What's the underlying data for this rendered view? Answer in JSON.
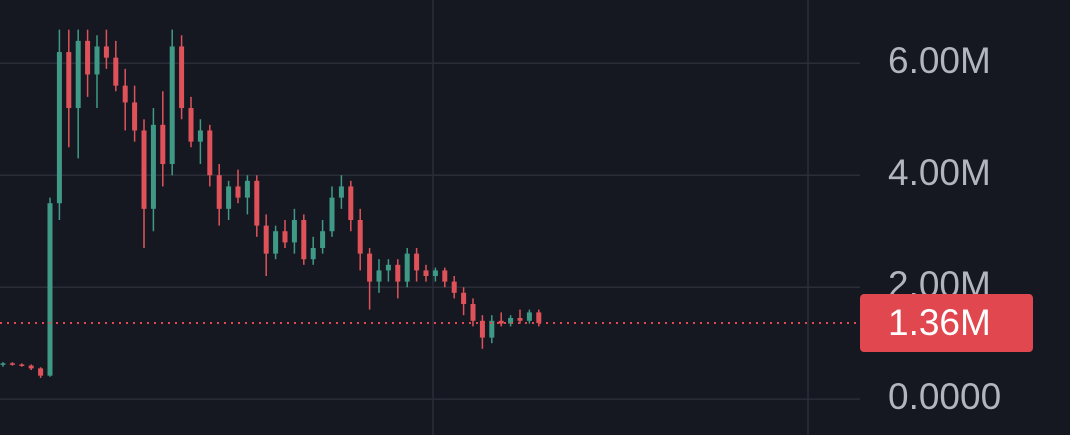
{
  "chart_data": {
    "type": "candlestick",
    "open": [
      0.62,
      0.64,
      0.62,
      0.6,
      0.55,
      0.42,
      3.5,
      6.2,
      5.2,
      6.4,
      5.8,
      6.3,
      6.1,
      5.6,
      5.3,
      4.8,
      3.4,
      4.9,
      4.2,
      6.3,
      5.2,
      4.6,
      4.8,
      4.0,
      3.4,
      3.8,
      3.6,
      3.9,
      3.1,
      2.6,
      3.0,
      2.8,
      3.2,
      2.5,
      2.7,
      3.0,
      3.6,
      3.8,
      3.2,
      2.6,
      2.1,
      2.3,
      2.4,
      2.1,
      2.6,
      2.3,
      2.2,
      2.3,
      2.1,
      1.9,
      1.7,
      1.4,
      1.1,
      1.4,
      1.35,
      1.45,
      1.4,
      1.55
    ],
    "high": [
      0.66,
      0.66,
      0.64,
      0.62,
      0.57,
      3.6,
      6.6,
      6.6,
      6.6,
      6.6,
      6.5,
      6.6,
      6.4,
      5.9,
      5.6,
      5.0,
      5.2,
      5.5,
      6.6,
      6.5,
      5.4,
      5.0,
      4.9,
      4.2,
      3.9,
      4.1,
      4.0,
      4.0,
      3.3,
      3.1,
      3.2,
      3.4,
      3.3,
      2.9,
      3.2,
      3.8,
      4.0,
      3.9,
      3.4,
      2.7,
      2.5,
      2.5,
      2.5,
      2.7,
      2.7,
      2.4,
      2.35,
      2.35,
      2.2,
      2.0,
      1.8,
      1.5,
      1.5,
      1.55,
      1.5,
      1.6,
      1.6,
      1.6
    ],
    "low": [
      0.58,
      0.6,
      0.58,
      0.52,
      0.38,
      0.4,
      3.2,
      4.5,
      4.3,
      5.4,
      5.2,
      5.9,
      5.5,
      4.8,
      4.6,
      2.7,
      3.0,
      3.8,
      4.0,
      5.0,
      4.5,
      4.2,
      3.8,
      3.1,
      3.2,
      3.5,
      3.3,
      2.9,
      2.2,
      2.5,
      2.7,
      2.6,
      2.4,
      2.4,
      2.6,
      2.9,
      3.4,
      3.0,
      2.3,
      1.6,
      1.9,
      2.1,
      1.8,
      2.0,
      2.1,
      2.1,
      2.1,
      2.0,
      1.8,
      1.5,
      1.3,
      0.9,
      1.0,
      1.3,
      1.3,
      1.35,
      1.35,
      1.3
    ],
    "close": [
      0.64,
      0.62,
      0.6,
      0.55,
      0.42,
      3.5,
      6.2,
      5.2,
      6.4,
      5.8,
      6.3,
      6.1,
      5.6,
      5.3,
      4.8,
      3.4,
      4.9,
      4.2,
      6.3,
      5.2,
      4.6,
      4.8,
      4.0,
      3.4,
      3.8,
      3.6,
      3.9,
      3.1,
      2.6,
      3.0,
      2.8,
      3.2,
      2.5,
      2.7,
      3.0,
      3.6,
      3.8,
      3.2,
      2.6,
      2.1,
      2.3,
      2.4,
      2.1,
      2.6,
      2.3,
      2.2,
      2.3,
      2.1,
      1.9,
      1.7,
      1.4,
      1.1,
      1.4,
      1.35,
      1.45,
      1.4,
      1.55,
      1.36
    ],
    "up_color": "#3e9a86",
    "down_color": "#e0525a",
    "ylim": [
      -0.64,
      7.13
    ],
    "yticks": [
      {
        "value": 0,
        "label": "0.0000"
      },
      {
        "value": 2,
        "label": "2.00M"
      },
      {
        "value": 4,
        "label": "4.00M"
      },
      {
        "value": 6,
        "label": "6.00M"
      }
    ],
    "grid": true,
    "last_price": {
      "value": 1.36,
      "label": "1.36M"
    },
    "last_price_color": "#e0474f"
  }
}
